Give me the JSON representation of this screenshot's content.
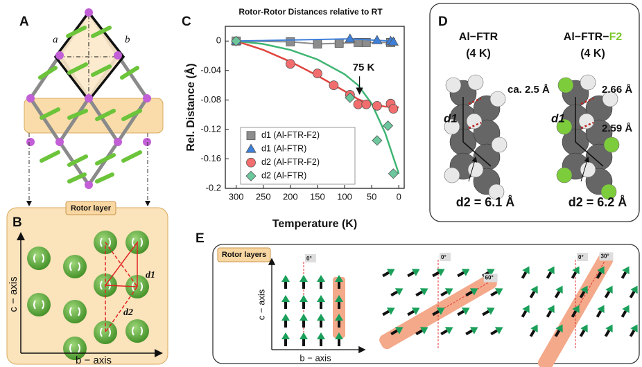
{
  "chart_data": {
    "type": "scatter",
    "title": "Rotor-Rotor Distances relative to RT",
    "x_label": "Temperature (K)",
    "y_label": "Rel. Distance (Å)",
    "xlim": [
      320,
      -10
    ],
    "xticks": [
      300,
      250,
      200,
      150,
      100,
      50,
      0
    ],
    "ylim": [
      -0.2,
      0.02
    ],
    "yticks": [
      0,
      -0.04,
      -0.08,
      -0.12,
      -0.16,
      -0.2
    ],
    "legend": "lower left",
    "series": [
      {
        "name": "d1 (Al-FTR-F2)",
        "color": "#8c8c8c",
        "marker": "square",
        "line": true,
        "x": [
          300,
          200,
          150,
          110,
          75,
          60,
          15
        ],
        "values": [
          0,
          -0.001,
          -0.004,
          -0.003,
          -0.002,
          -0.002,
          -0.002
        ]
      },
      {
        "name": "d1 (Al-FTR)",
        "color": "#3d7fd9",
        "marker": "triangle",
        "line": true,
        "x": [
          300,
          90,
          40,
          15,
          10
        ],
        "values": [
          0,
          0.003,
          0.001,
          0,
          -0.001
        ]
      },
      {
        "name": "d2 (Al-FTR-F2)",
        "color": "#f26d6d",
        "marker": "circle",
        "line": false,
        "x": [
          200,
          150,
          120,
          90,
          75,
          60,
          40,
          15,
          10
        ],
        "values": [
          -0.031,
          -0.044,
          -0.06,
          -0.073,
          -0.086,
          -0.086,
          -0.088,
          -0.085,
          -0.092
        ]
      },
      {
        "name": "d2 (Al-FTR)",
        "color": "#6cc79c",
        "marker": "diamond",
        "line": false,
        "x": [
          300,
          90,
          40,
          20,
          10
        ],
        "values": [
          0,
          -0.077,
          -0.135,
          -0.115,
          -0.18
        ]
      },
      {
        "color": "#e0453f",
        "marker": "none",
        "line": true,
        "x": [
          300,
          250,
          200,
          150,
          100,
          75,
          50,
          25,
          0
        ],
        "values": [
          0,
          -0.012,
          -0.028,
          -0.047,
          -0.068,
          -0.079,
          -0.086,
          -0.089,
          -0.09
        ]
      },
      {
        "color": "#3fb573",
        "marker": "none",
        "line": true,
        "x": [
          300,
          250,
          200,
          150,
          100,
          75,
          50,
          25,
          0
        ],
        "values": [
          0,
          -0.004,
          -0.012,
          -0.025,
          -0.045,
          -0.06,
          -0.085,
          -0.125,
          -0.18
        ]
      }
    ],
    "annotations": [
      {
        "text": "75 K",
        "x": 75,
        "y": -0.078
      }
    ]
  },
  "panel_a": {
    "label": "A",
    "lattice_a": "a",
    "lattice_b": "b"
  },
  "panel_b": {
    "label": "B",
    "tag": "Rotor layer",
    "d1": "d1",
    "d2": "d2",
    "y_axis": "c − axis",
    "x_axis": "b − axis"
  },
  "panel_c": {
    "label": "C"
  },
  "panel_d": {
    "label": "D",
    "left": {
      "title": "Al−FTR",
      "temperature": "(4 K)",
      "distance": "ca. 2.5 Å",
      "d1": "d1",
      "d2": "d2 = 6.1 Å"
    },
    "right": {
      "title_prefix": "Al−FTR−",
      "title_suffix": "F2",
      "temperature": "(4 K)",
      "distance_1": "2.66 Å",
      "distance_2": "2.59 Å",
      "d1": "d1",
      "d2": "d2 = 6.2 Å"
    }
  },
  "panel_e": {
    "label": "E",
    "tag": "Rotor layers",
    "y_axis": "c − axis",
    "x_axis": "b − axis",
    "angles": [
      {
        "zero": "0°"
      },
      {
        "zero": "0°",
        "tilt": "60°"
      },
      {
        "zero": "0°",
        "tilt": "30°"
      }
    ]
  }
}
